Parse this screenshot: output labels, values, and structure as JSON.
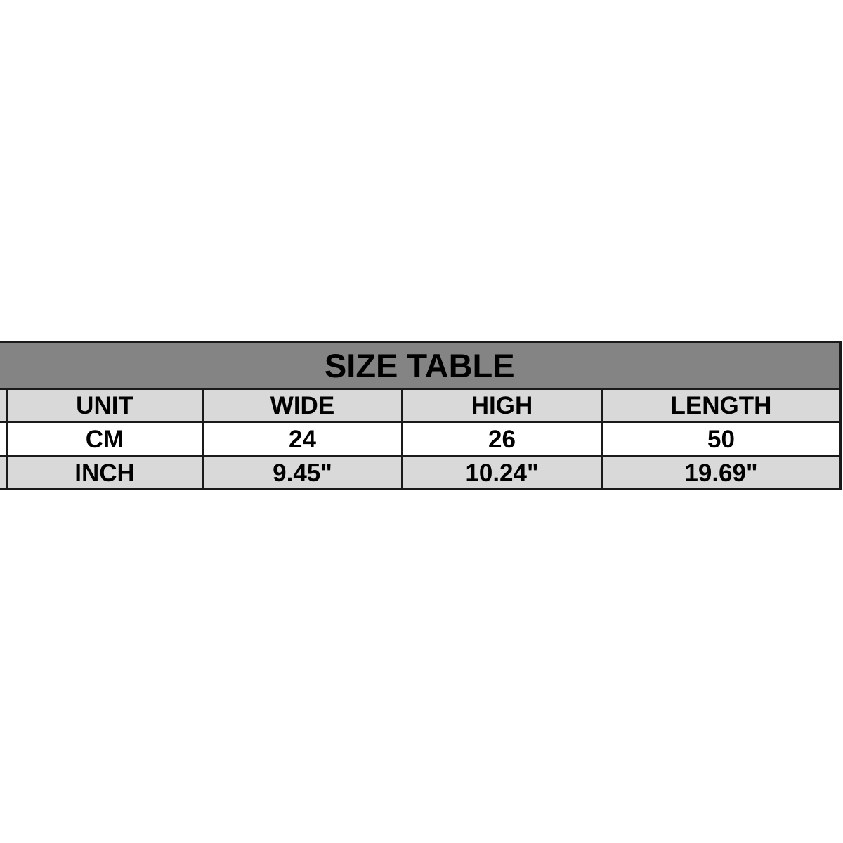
{
  "chart_data": {
    "type": "table",
    "title": "SIZE TABLE",
    "columns": [
      "UNIT",
      "WIDE",
      "HIGH",
      "LENGTH"
    ],
    "rows": [
      [
        "CM",
        "24",
        "26",
        "50"
      ],
      [
        "INCH",
        "9.45\"",
        "10.24\"",
        "19.69\""
      ]
    ],
    "layout_hints": {
      "title_row_merged": true,
      "left_column_cut_off_at_image_edge": true,
      "grid_on": true
    }
  },
  "colors": {
    "title_bg": "#848484",
    "header_bg": "#d9d9d9",
    "alt_row_bg": "#d9d9d9",
    "row_bg": "#ffffff",
    "border": "#1a1a1a",
    "text": "#000000",
    "page_bg": "#ffffff"
  }
}
